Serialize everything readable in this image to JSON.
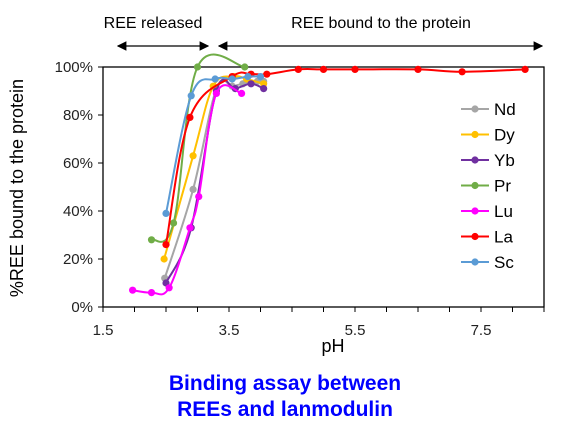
{
  "chart_data": {
    "type": "line",
    "xlabel": "pH",
    "ylabel": "%REE bound to the protein",
    "xlim": [
      1.5,
      8.5
    ],
    "ylim": [
      0,
      100
    ],
    "x_ticks": [
      "1.5",
      "3.5",
      "5.5",
      "7.5"
    ],
    "x_tick_values": [
      1.5,
      3.5,
      5.5,
      7.5
    ],
    "y_ticks": [
      "0%",
      "20%",
      "40%",
      "60%",
      "80%",
      "100%"
    ],
    "y_tick_values": [
      0,
      20,
      40,
      60,
      80,
      100
    ],
    "grid": false,
    "legend_position": "right",
    "annotations": {
      "left": "REE released",
      "right": "REE bound to the protein"
    },
    "series": [
      {
        "name": "Nd",
        "color": "#a6a6a6",
        "x": [
          2.48,
          2.93,
          3.3,
          3.55,
          3.72,
          3.95,
          4.05
        ],
        "y": [
          12,
          49,
          91,
          92,
          93,
          94,
          94
        ]
      },
      {
        "name": "Dy",
        "color": "#ffc000",
        "x": [
          2.47,
          2.93,
          3.25,
          3.58,
          3.78,
          4.05
        ],
        "y": [
          20,
          63,
          92,
          96,
          95,
          93
        ]
      },
      {
        "name": "Yb",
        "color": "#7030a0",
        "x": [
          2.5,
          2.9,
          3.3,
          3.6,
          3.85,
          4.05
        ],
        "y": [
          10,
          33,
          90,
          91,
          93,
          91
        ]
      },
      {
        "name": "Pr",
        "color": "#70ad47",
        "x": [
          2.27,
          2.62,
          3.0,
          3.75
        ],
        "y": [
          28,
          35,
          100,
          100
        ]
      },
      {
        "name": "Lu",
        "color": "#ff00ff",
        "x": [
          1.97,
          2.27,
          2.55,
          2.88,
          3.02,
          3.3,
          3.7
        ],
        "y": [
          7,
          6,
          8,
          33,
          46,
          89,
          89
        ]
      },
      {
        "name": "La",
        "color": "#ff0000",
        "x": [
          2.5,
          2.88,
          3.55,
          3.85,
          4.1,
          4.6,
          5.0,
          5.5,
          6.5,
          7.2,
          8.2
        ],
        "y": [
          26,
          79,
          96,
          97,
          97,
          99,
          99,
          99,
          99,
          98,
          99
        ]
      },
      {
        "name": "Sc",
        "color": "#5b9bd5",
        "x": [
          2.5,
          2.9,
          3.28,
          3.55,
          3.8,
          4.0
        ],
        "y": [
          39,
          88,
          95,
          95,
          96,
          96
        ]
      }
    ]
  },
  "caption": {
    "line1": "Binding assay between",
    "line2": "REEs and lanmodulin",
    "color": "#0000ff"
  }
}
